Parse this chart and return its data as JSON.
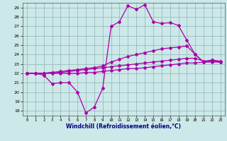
{
  "x": [
    0,
    1,
    2,
    3,
    4,
    5,
    6,
    7,
    8,
    9,
    10,
    11,
    12,
    13,
    14,
    15,
    16,
    17,
    18,
    19,
    20,
    21,
    22,
    23
  ],
  "line1": [
    22.0,
    22.0,
    21.8,
    20.9,
    21.0,
    21.0,
    20.0,
    17.8,
    18.4,
    20.4,
    27.0,
    27.5,
    29.2,
    28.8,
    29.3,
    27.5,
    27.3,
    27.4,
    27.1,
    25.5,
    24.0,
    23.2,
    23.4,
    23.2
  ],
  "line2": [
    22.0,
    22.0,
    22.0,
    22.1,
    22.2,
    22.3,
    22.4,
    22.5,
    22.6,
    22.8,
    23.2,
    23.5,
    23.8,
    24.0,
    24.2,
    24.4,
    24.6,
    24.7,
    24.8,
    24.9,
    24.0,
    23.2,
    23.3,
    23.2
  ],
  "line3": [
    22.0,
    22.0,
    22.0,
    22.1,
    22.1,
    22.2,
    22.3,
    22.4,
    22.5,
    22.6,
    22.7,
    22.8,
    22.9,
    23.0,
    23.1,
    23.2,
    23.3,
    23.4,
    23.5,
    23.6,
    23.6,
    23.3,
    23.4,
    23.3
  ],
  "line4": [
    22.0,
    22.0,
    22.0,
    22.0,
    22.0,
    22.0,
    22.0,
    22.1,
    22.1,
    22.2,
    22.3,
    22.4,
    22.5,
    22.5,
    22.6,
    22.7,
    22.8,
    22.9,
    23.0,
    23.1,
    23.1,
    23.2,
    23.2,
    23.2
  ],
  "color": "#aa00aa",
  "bg_color": "#cce8e8",
  "grid_color": "#99bbbb",
  "ylim": [
    17.5,
    29.5
  ],
  "yticks": [
    18,
    19,
    20,
    21,
    22,
    23,
    24,
    25,
    26,
    27,
    28,
    29
  ],
  "xticks": [
    0,
    1,
    2,
    3,
    4,
    5,
    6,
    7,
    8,
    9,
    10,
    11,
    12,
    13,
    14,
    15,
    16,
    17,
    18,
    19,
    20,
    21,
    22,
    23
  ],
  "xlabel": "Windchill (Refroidissement éolien,°C)",
  "marker": "D"
}
